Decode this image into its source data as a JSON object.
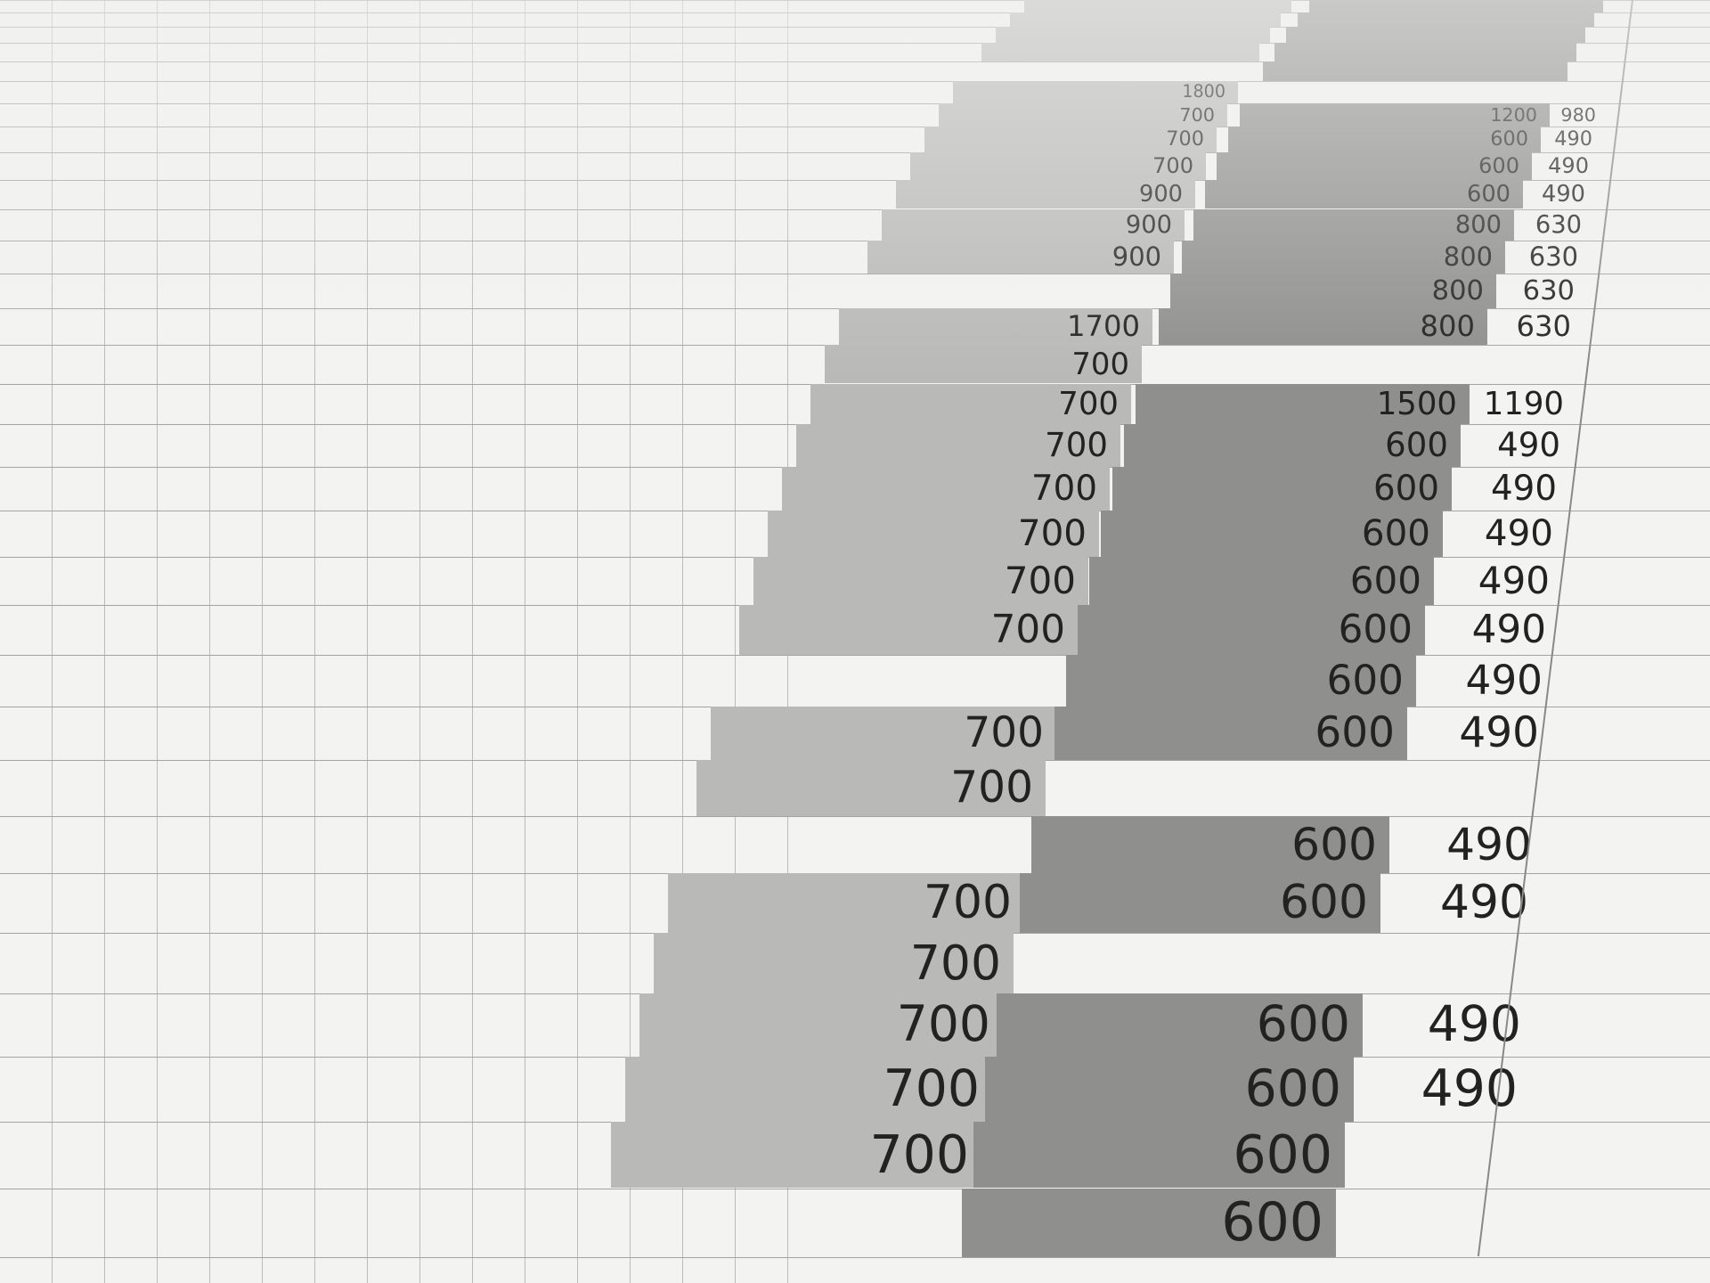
{
  "columns": {
    "a": [
      [
        "1800",
        "700",
        "700",
        "700",
        "900",
        "900",
        "900"
      ],
      [
        "1700",
        "700",
        "700",
        "700",
        "700",
        "700",
        "700",
        "700"
      ],
      [
        "700",
        "700"
      ],
      [
        "700",
        "700",
        "700",
        "700",
        "700"
      ]
    ],
    "b": [
      [
        "1200",
        "600",
        "600",
        "600",
        "800",
        "800",
        "800",
        "800"
      ],
      [
        "1500",
        "600",
        "600",
        "600",
        "600",
        "600",
        "600",
        "600"
      ],
      [
        "600",
        "600"
      ],
      [
        "600",
        "600",
        "600",
        "600"
      ]
    ],
    "c": [
      [
        "980",
        "490",
        "490",
        "490",
        "630",
        "630",
        "630",
        "630"
      ],
      [
        "1190",
        "490",
        "490",
        "490",
        "490",
        "490",
        "490",
        "490"
      ],
      [
        "490",
        "490"
      ],
      [
        "490",
        "490"
      ]
    ]
  },
  "colors": {
    "paper": "#f3f3f1",
    "shade_light": "#b9b9b7",
    "shade_dark": "#8f8f8d",
    "text": "#222222"
  }
}
